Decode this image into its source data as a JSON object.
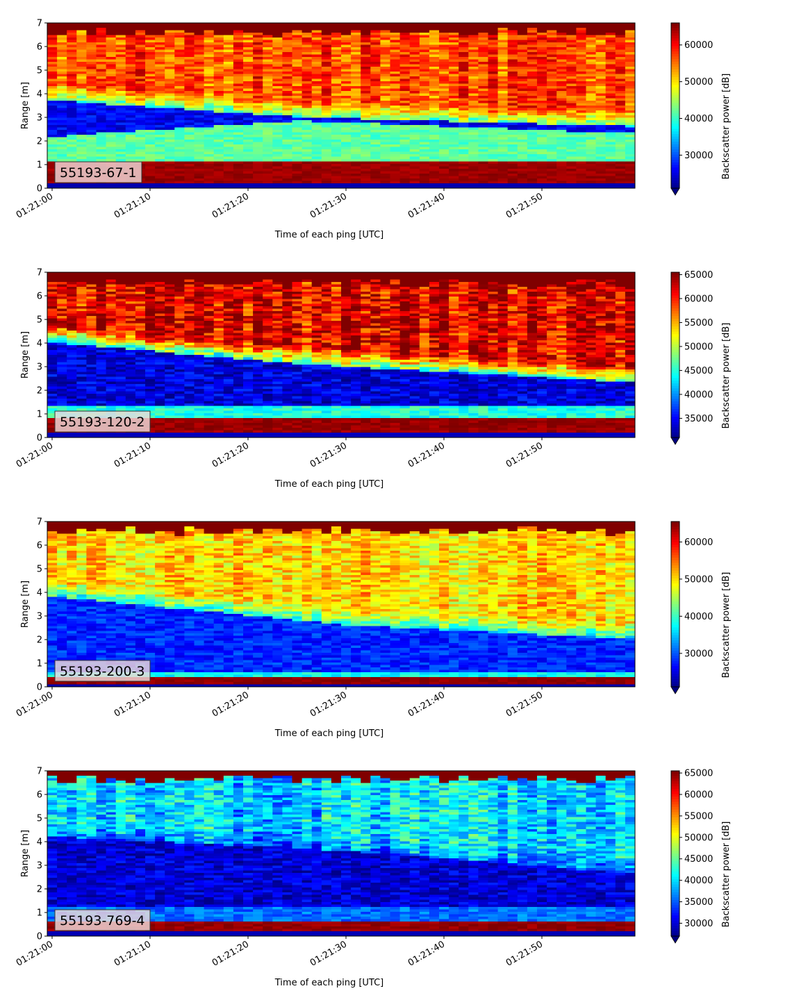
{
  "chart_data": [
    {
      "type": "heatmap",
      "label": "55193-67-1",
      "xlabel": "Time of each ping [UTC]",
      "ylabel": "Range [m]",
      "x_ticks": [
        "01:21:00",
        "01:21:10",
        "01:21:20",
        "01:21:30",
        "01:21:40",
        "01:21:50"
      ],
      "y_ticks": [
        "0",
        "1",
        "2",
        "3",
        "4",
        "5",
        "6",
        "7"
      ],
      "ylim": [
        0,
        7
      ],
      "xlim_seconds": [
        0,
        60
      ],
      "colorbar": {
        "label": "Backscatter power [dB]",
        "ticks": [
          "30000",
          "40000",
          "50000",
          "60000"
        ],
        "range": [
          21000,
          66000
        ],
        "colormap": "jet"
      },
      "profile": {
        "floor_top_m": 1.15,
        "floor_bottom_m": 0.25,
        "surface_m": 6.6,
        "dark_top_start": 3.7,
        "dark_top_peak": 3.0,
        "dark_top_end": 2.6,
        "dark_bottom_start": 2.2,
        "dark_bottom_peak": 2.85,
        "dark_bottom_end": 2.3,
        "peak_time_s": 25,
        "upper_level": 57000,
        "mid_level": 42000,
        "dark_level": 25000
      }
    },
    {
      "type": "heatmap",
      "label": "55193-120-2",
      "xlabel": "Time of each ping [UTC]",
      "ylabel": "Range [m]",
      "x_ticks": [
        "01:21:00",
        "01:21:10",
        "01:21:20",
        "01:21:30",
        "01:21:40",
        "01:21:50"
      ],
      "y_ticks": [
        "0",
        "1",
        "2",
        "3",
        "4",
        "5",
        "6",
        "7"
      ],
      "ylim": [
        0,
        7
      ],
      "xlim_seconds": [
        0,
        60
      ],
      "colorbar": {
        "label": "Backscatter power [dB]",
        "ticks": [
          "35000",
          "40000",
          "45000",
          "50000",
          "55000",
          "60000",
          "65000"
        ],
        "range": [
          31000,
          65500
        ],
        "colormap": "jet"
      },
      "profile": {
        "floor_top_m": 0.85,
        "floor_bottom_m": 0.2,
        "surface_m": 6.55,
        "dark_top_start": 4.0,
        "dark_top_peak": 3.1,
        "dark_top_end": 2.3,
        "dark_bottom_start": 1.3,
        "dark_bottom_peak": 1.3,
        "dark_bottom_end": 1.3,
        "peak_time_s": 25,
        "upper_level": 62000,
        "mid_level": 45000,
        "dark_level": 33000
      }
    },
    {
      "type": "heatmap",
      "label": "55193-200-3",
      "xlabel": "Time of each ping [UTC]",
      "ylabel": "Range [m]",
      "x_ticks": [
        "01:21:00",
        "01:21:10",
        "01:21:20",
        "01:21:30",
        "01:21:40",
        "01:21:50"
      ],
      "y_ticks": [
        "0",
        "1",
        "2",
        "3",
        "4",
        "5",
        "6",
        "7"
      ],
      "ylim": [
        0,
        7
      ],
      "xlim_seconds": [
        0,
        60
      ],
      "colorbar": {
        "label": "Backscatter power [dB]",
        "ticks": [
          "30000",
          "40000",
          "50000",
          "60000"
        ],
        "range": [
          21000,
          65500
        ],
        "colormap": "jet"
      },
      "profile": {
        "floor_top_m": 0.4,
        "floor_bottom_m": 0.15,
        "surface_m": 6.6,
        "dark_top_start": 3.8,
        "dark_top_peak": 2.6,
        "dark_top_end": 2.0,
        "dark_bottom_start": 0.6,
        "dark_bottom_peak": 0.6,
        "dark_bottom_end": 0.6,
        "peak_time_s": 30,
        "upper_level": 50000,
        "mid_level": 38000,
        "dark_level": 27000
      }
    },
    {
      "type": "heatmap",
      "label": "55193-769-4",
      "xlabel": "Time of each ping [UTC]",
      "ylabel": "Range [m]",
      "x_ticks": [
        "01:21:00",
        "01:21:10",
        "01:21:20",
        "01:21:30",
        "01:21:40",
        "01:21:50"
      ],
      "y_ticks": [
        "0",
        "1",
        "2",
        "3",
        "4",
        "5",
        "6",
        "7"
      ],
      "ylim": [
        0,
        7
      ],
      "xlim_seconds": [
        0,
        60
      ],
      "colorbar": {
        "label": "Backscatter power [dB]",
        "ticks": [
          "30000",
          "35000",
          "40000",
          "45000",
          "50000",
          "55000",
          "60000",
          "65000"
        ],
        "range": [
          27000,
          65500
        ],
        "colormap": "jet"
      },
      "profile": {
        "floor_top_m": 0.65,
        "floor_bottom_m": 0.25,
        "surface_m": 6.65,
        "dark_top_start": 4.2,
        "dark_top_peak": 3.6,
        "dark_top_end": 2.6,
        "dark_bottom_start": 1.2,
        "dark_bottom_peak": 1.2,
        "dark_bottom_end": 1.2,
        "peak_time_s": 30,
        "upper_level": 40000,
        "mid_level": 36000,
        "dark_level": 29000
      }
    }
  ]
}
